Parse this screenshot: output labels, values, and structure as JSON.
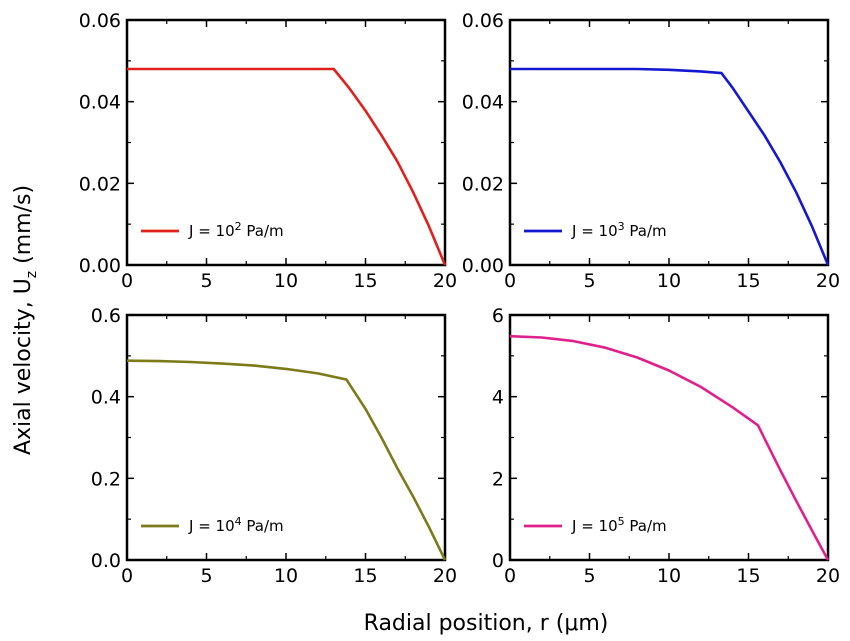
{
  "figure": {
    "xlabel": "Radial position, r (μm)",
    "ylabel_main": "Axial velocity, U",
    "ylabel_sub": "z",
    "ylabel_unit": " (mm/s)"
  },
  "chart_data": [
    {
      "type": "line",
      "xlim": [
        0,
        20
      ],
      "ylim": [
        0,
        0.06
      ],
      "xticks": [
        "0",
        "5",
        "10",
        "15",
        "20"
      ],
      "yticks": [
        "0.00",
        "0.02",
        "0.04",
        "0.06"
      ],
      "legend_position": "bottom-left",
      "series": [
        {
          "name": "J = 10² Pa/m",
          "legend_prefix": "J = 10",
          "legend_exp": "2",
          "legend_suffix": " Pa/m",
          "color": "#e0201b",
          "x": [
            0,
            5,
            10,
            13,
            14,
            15,
            16,
            17,
            18,
            19,
            20
          ],
          "y": [
            0.048,
            0.048,
            0.048,
            0.048,
            0.0432,
            0.0378,
            0.0318,
            0.0254,
            0.0178,
            0.0094,
            0.0
          ]
        }
      ]
    },
    {
      "type": "line",
      "xlim": [
        0,
        20
      ],
      "ylim": [
        0,
        0.06
      ],
      "xticks": [
        "0",
        "5",
        "10",
        "15",
        "20"
      ],
      "yticks": [
        "0.00",
        "0.02",
        "0.04",
        "0.06"
      ],
      "legend_position": "bottom-left",
      "series": [
        {
          "name": "J = 10³ Pa/m",
          "legend_prefix": "J = 10",
          "legend_exp": "3",
          "legend_suffix": " Pa/m",
          "color": "#1418d0",
          "x": [
            0,
            5,
            8,
            10,
            12,
            13.3,
            14,
            15,
            16,
            17,
            18,
            19,
            20
          ],
          "y": [
            0.048,
            0.048,
            0.048,
            0.0478,
            0.0474,
            0.047,
            0.0434,
            0.0376,
            0.0318,
            0.0252,
            0.0178,
            0.0094,
            0.0
          ]
        }
      ]
    },
    {
      "type": "line",
      "xlim": [
        0,
        20
      ],
      "ylim": [
        0,
        0.6
      ],
      "xticks": [
        "0",
        "5",
        "10",
        "15",
        "20"
      ],
      "yticks": [
        "0.0",
        "0.2",
        "0.4",
        "0.6"
      ],
      "legend_position": "bottom-left",
      "series": [
        {
          "name": "J = 10⁴ Pa/m",
          "legend_prefix": "J = 10",
          "legend_exp": "4",
          "legend_suffix": " Pa/m",
          "color": "#7d7a1a",
          "x": [
            0,
            2,
            4,
            6,
            8,
            10,
            12,
            13.8,
            15,
            16,
            17,
            18,
            19,
            20
          ],
          "y": [
            0.488,
            0.487,
            0.485,
            0.481,
            0.476,
            0.468,
            0.457,
            0.442,
            0.37,
            0.3,
            0.225,
            0.155,
            0.08,
            0.0
          ]
        }
      ]
    },
    {
      "type": "line",
      "xlim": [
        0,
        20
      ],
      "ylim": [
        0,
        6
      ],
      "xticks": [
        "0",
        "5",
        "10",
        "15",
        "20"
      ],
      "yticks": [
        "0",
        "2",
        "4",
        "6"
      ],
      "legend_position": "bottom-left",
      "series": [
        {
          "name": "J = 10⁵ Pa/m",
          "legend_prefix": "J = 10",
          "legend_exp": "5",
          "legend_suffix": " Pa/m",
          "color": "#e0208c",
          "x": [
            0,
            2,
            4,
            6,
            8,
            10,
            12,
            14,
            15.6,
            16,
            17,
            18,
            19,
            20
          ],
          "y": [
            5.48,
            5.45,
            5.36,
            5.2,
            4.96,
            4.64,
            4.24,
            3.74,
            3.3,
            2.98,
            2.2,
            1.45,
            0.72,
            0.0
          ]
        }
      ]
    }
  ]
}
